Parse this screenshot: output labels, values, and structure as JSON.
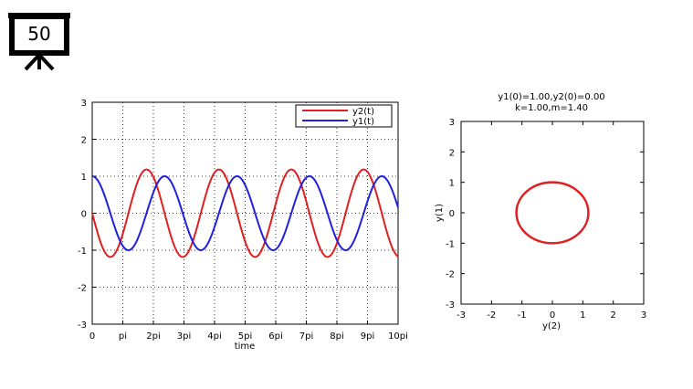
{
  "slide": {
    "number": "50",
    "icon": "projector-screen-icon"
  },
  "chart_data": [
    {
      "type": "line",
      "title": "",
      "xlabel": "time",
      "ylabel": "",
      "xlim_pi": [
        0,
        10
      ],
      "ylim": [
        -3,
        3
      ],
      "x_ticks": [
        "0",
        "pi",
        "2pi",
        "3pi",
        "4pi",
        "5pi",
        "6pi",
        "7pi",
        "8pi",
        "9pi",
        "10pi"
      ],
      "y_ticks": [
        "-3",
        "-2",
        "-1",
        "0",
        "1",
        "2",
        "3"
      ],
      "grid": true,
      "legend_position": "top-right",
      "series": [
        {
          "name": "y2(t)",
          "color": "#e02020",
          "expression": "-1.183*sin(0.845*t)",
          "amplitude": 1.183,
          "omega": 0.845
        },
        {
          "name": "y1(t)",
          "color": "#2020e0",
          "expression": "cos(0.845*t)",
          "amplitude": 1.0,
          "omega": 0.845
        }
      ]
    },
    {
      "type": "line",
      "title": "y1(0)=1.00,y2(0)=0.00",
      "subtitle": "k=1.00,m=1.40",
      "xlabel": "y(2)",
      "ylabel": "y(1)",
      "xlim": [
        -3,
        3
      ],
      "ylim": [
        -3,
        3
      ],
      "x_ticks": [
        "-3",
        "-2",
        "-1",
        "0",
        "1",
        "2",
        "3"
      ],
      "y_ticks": [
        "-3",
        "-2",
        "-1",
        "0",
        "1",
        "2",
        "3"
      ],
      "grid": false,
      "series": [
        {
          "color": "#e02020",
          "shape": "ellipse",
          "x_semi_axis": 1.183,
          "y_semi_axis": 1.0
        }
      ]
    }
  ]
}
